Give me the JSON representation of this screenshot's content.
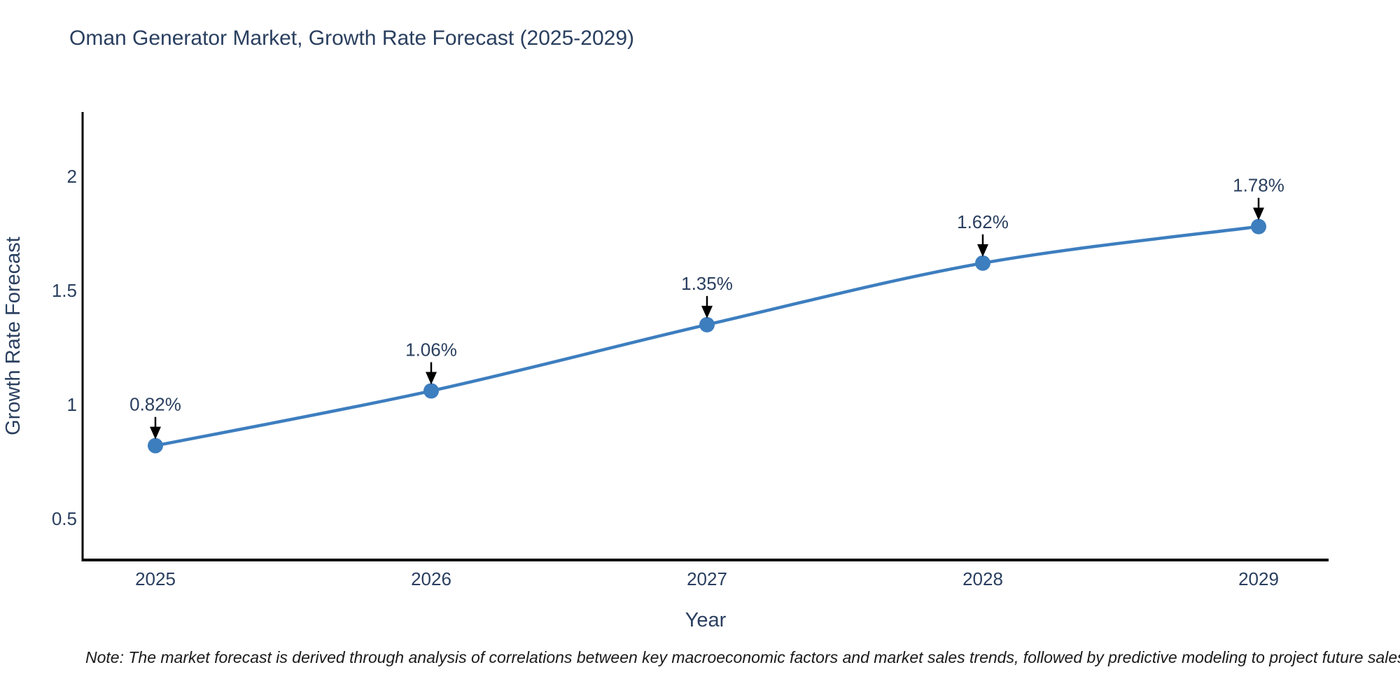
{
  "header": {
    "title": "Oman Generator Market, Growth Rate Forecast (2025-2029)"
  },
  "chart_data": {
    "type": "line",
    "title": "Oman Generator Market, Growth Rate Forecast (2025-2029)",
    "xlabel": "Year",
    "ylabel": "Growth Rate Forecast",
    "categories": [
      2025,
      2026,
      2027,
      2028,
      2029
    ],
    "values": [
      0.82,
      1.06,
      1.35,
      1.62,
      1.78
    ],
    "point_labels": [
      "0.82%",
      "1.06%",
      "1.35%",
      "1.62%",
      "1.78%"
    ],
    "yticks": [
      0.5,
      1,
      1.5,
      2
    ],
    "ylim": [
      0.319,
      2.282
    ],
    "line_shape": "spline",
    "markers": true,
    "grid": false,
    "legend_position": "none",
    "colors": {
      "line": "#3d7ebf",
      "marker": "#3d7ebf",
      "text": "#2a3f5f",
      "annotation_arrow": "#000000",
      "axis_line": "#000000",
      "background": "#ffffff"
    }
  },
  "footnote": {
    "text": "Note: The market forecast is derived through analysis of correlations between key macroeconomic factors and market sales trends, followed by predictive modeling to project future sales"
  }
}
